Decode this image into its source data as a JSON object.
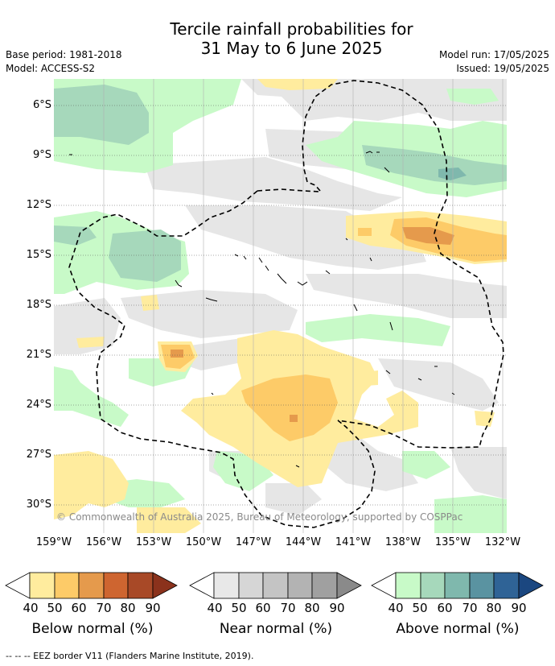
{
  "title": {
    "line1": "Tercile rainfall probabilities for",
    "line2": "31 May to 6 June 2025"
  },
  "meta": {
    "base_period": "Base period: 1981-2018",
    "model": "Model: ACCESS-S2",
    "model_run": "Model run: 17/05/2025",
    "issued": "Issued: 19/05/2025"
  },
  "map": {
    "region": "Pacific",
    "y_ticks": [
      "6°S",
      "9°S",
      "12°S",
      "15°S",
      "18°S",
      "21°S",
      "24°S",
      "27°S",
      "30°S"
    ],
    "x_ticks": [
      "159°W",
      "156°W",
      "153°W",
      "150°W",
      "147°W",
      "144°W",
      "141°W",
      "138°W",
      "135°W",
      "132°W"
    ],
    "copyright": "© Commonwealth of Australia 2025, Bureau of Meteorology, supported by COSPPac"
  },
  "colorbars": [
    {
      "title": "Below normal (%)",
      "labels": [
        "40",
        "50",
        "60",
        "70",
        "80",
        "90"
      ],
      "colors": [
        "#ffffff",
        "#ffec9e",
        "#fdcb68",
        "#e59a4c",
        "#ce6530",
        "#a84927",
        "#8b321c"
      ]
    },
    {
      "title": "Near normal (%)",
      "labels": [
        "40",
        "50",
        "60",
        "70",
        "80",
        "90"
      ],
      "colors": [
        "#ffffff",
        "#e8e8e8",
        "#d6d6d6",
        "#c4c4c4",
        "#b3b3b3",
        "#a0a0a0",
        "#8a8a8a"
      ]
    },
    {
      "title": "Above normal (%)",
      "labels": [
        "40",
        "50",
        "60",
        "70",
        "80",
        "90"
      ],
      "colors": [
        "#ffffff",
        "#c8fac8",
        "#a6d8bb",
        "#7fb8ad",
        "#5a93a1",
        "#2f6396",
        "#1b4780"
      ]
    }
  ],
  "legend_note": "--  --  -- EEZ border V11 (Flanders Marine Institute, 2019).",
  "colors": {
    "below_40": "#ffec9e",
    "below_50": "#fdcb68",
    "below_60": "#e59a4c",
    "near_40": "#e6e6e6",
    "near_50": "#d4d4d4",
    "above_40": "#c8fac8",
    "above_50": "#a6d8bb",
    "above_60": "#7fb8ad"
  }
}
